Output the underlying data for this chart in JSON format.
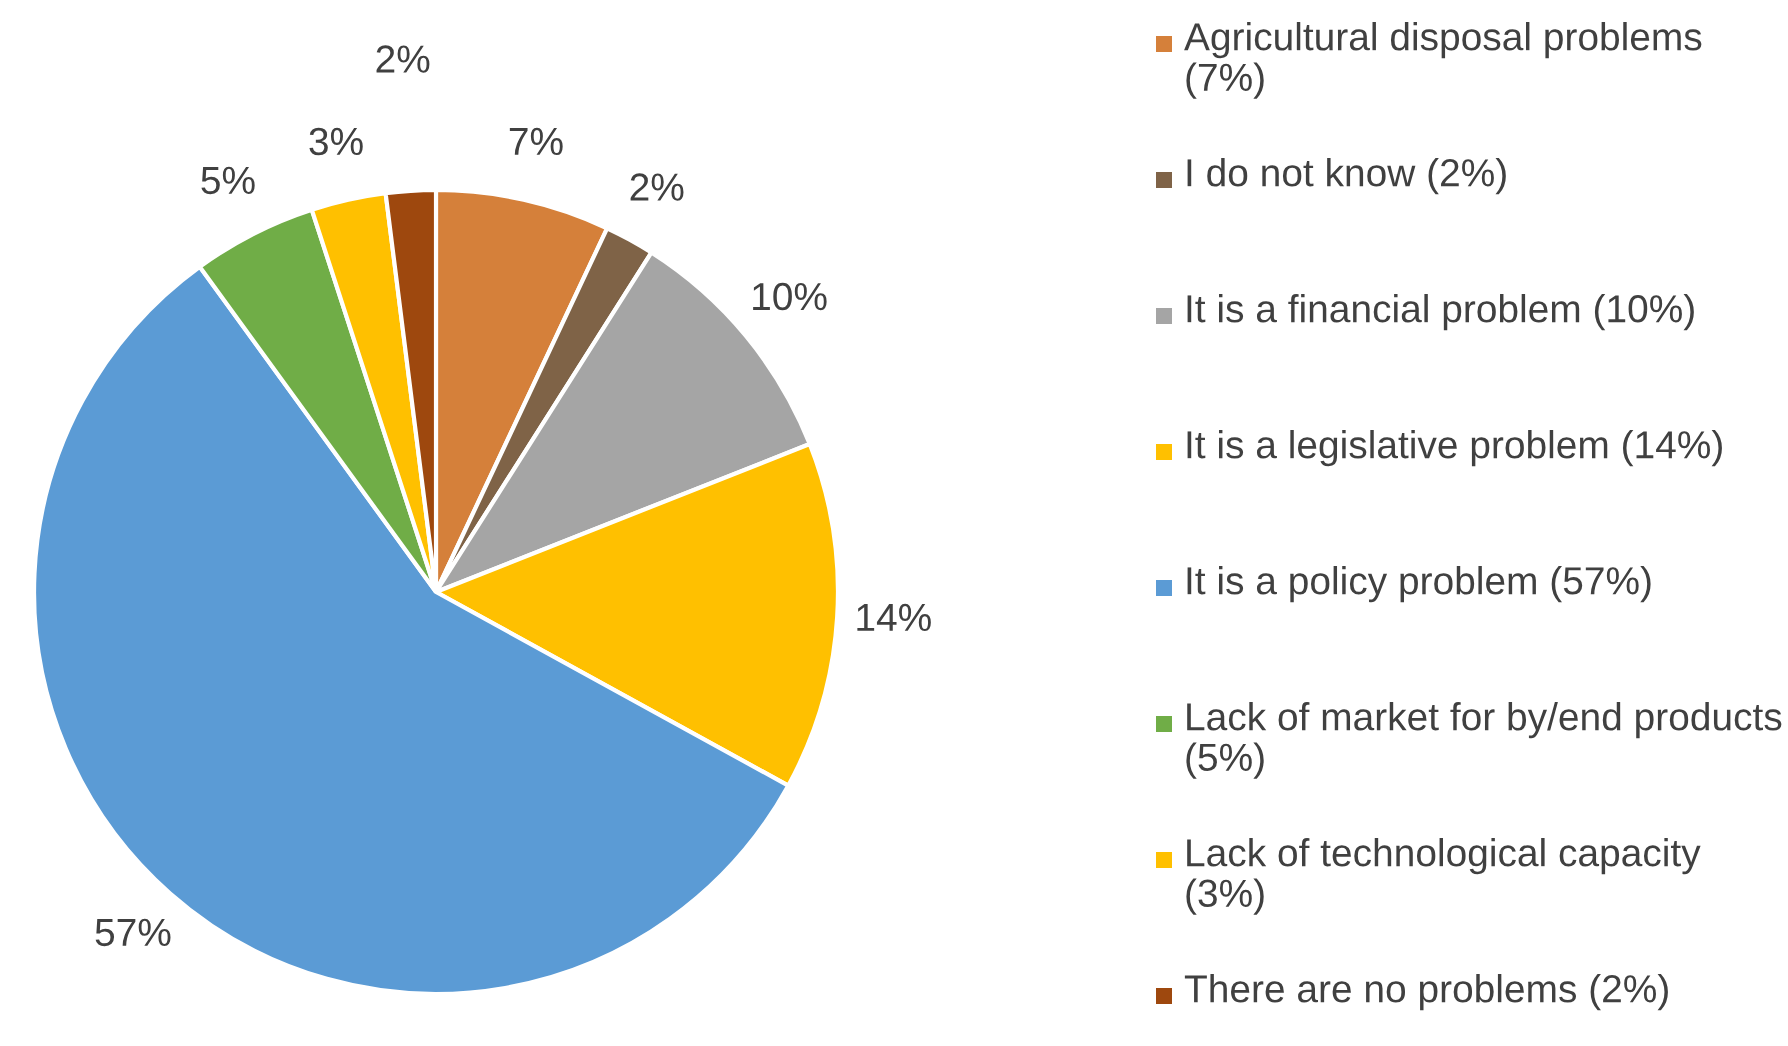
{
  "chart_data": {
    "type": "pie",
    "categories": [
      "Agricultural disposal problems (7%)",
      "I do not know (2%)",
      "It is a financial problem (10%)",
      "It is a legislative problem (14%)",
      "It is a policy problem (57%)",
      "Lack of market for by/end products (5%)",
      "Lack of technological capacity (3%)",
      "There are no problems (2%)"
    ],
    "values": [
      7,
      2,
      10,
      14,
      57,
      5,
      3,
      2
    ],
    "value_labels": [
      "7%",
      "2%",
      "10%",
      "14%",
      "57%",
      "5%",
      "3%",
      "2%"
    ],
    "colors": [
      "#d5803a",
      "#7f6347",
      "#a5a5a5",
      "#ffc000",
      "#5b9bd5",
      "#70ad47",
      "#ffc000",
      "#9e480e"
    ],
    "legend": "right"
  }
}
